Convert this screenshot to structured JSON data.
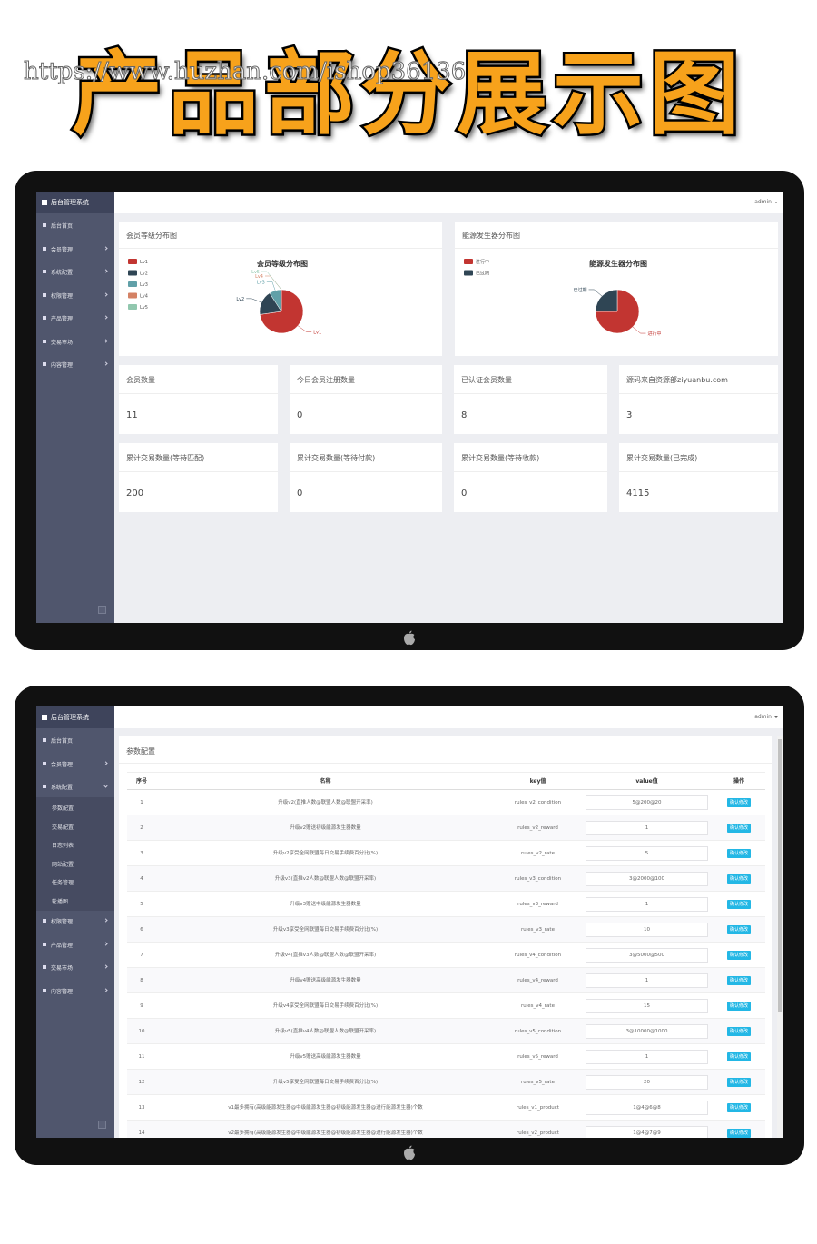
{
  "banner": {
    "title": "产品部分展示图",
    "watermark": "https://www.huzhan.com/ishop36136"
  },
  "screens": [
    {
      "brand": "后台管理系统",
      "user": "admin",
      "menu": [
        {
          "label": "后台首页"
        },
        {
          "label": "会员管理"
        },
        {
          "label": "系统配置"
        },
        {
          "label": "权限管理"
        },
        {
          "label": "产品管理"
        },
        {
          "label": "交易市场"
        },
        {
          "label": "内容管理"
        }
      ],
      "charts": [
        {
          "panel_title": "会员等级分布图",
          "type": "pie",
          "title": "会员等级分布图",
          "categories": [
            "Lv1",
            "Lv2",
            "Lv3",
            "Lv4",
            "Lv5"
          ],
          "values": [
            8,
            2,
            1,
            0,
            0
          ],
          "colors": [
            "#c23531",
            "#2f4554",
            "#61a0a8",
            "#d48265",
            "#91c7ae"
          ]
        },
        {
          "panel_title": "能源发生器分布图",
          "type": "pie",
          "title": "能源发生器分布图",
          "categories": [
            "进行中",
            "已过期"
          ],
          "values": [
            6,
            2
          ],
          "colors": [
            "#c23531",
            "#2f4554"
          ]
        }
      ],
      "stats": [
        {
          "label": "会员数量",
          "value": 11
        },
        {
          "label": "今日会员注册数量",
          "value": 0
        },
        {
          "label": "已认证会员数量",
          "value": 8
        },
        {
          "label": "源码来自资源部ziyuanbu.com",
          "value": 3
        },
        {
          "label": "累计交易数量(等待匹配)",
          "value": 200
        },
        {
          "label": "累计交易数量(等待付款)",
          "value": 0
        },
        {
          "label": "累计交易数量(等待收款)",
          "value": 0
        },
        {
          "label": "累计交易数量(已完成)",
          "value": 4115
        }
      ]
    },
    {
      "brand": "后台管理系统",
      "user": "admin",
      "menu": [
        {
          "label": "后台首页"
        },
        {
          "label": "会员管理"
        },
        {
          "label": "系统配置",
          "children": [
            "参数配置",
            "交易配置",
            "日志列表",
            "网站配置",
            "任务管理",
            "轮播图"
          ]
        },
        {
          "label": "权限管理"
        },
        {
          "label": "产品管理"
        },
        {
          "label": "交易市场"
        },
        {
          "label": "内容管理"
        }
      ],
      "page_title": "参数配置",
      "table": {
        "columns": [
          "序号",
          "名称",
          "key值",
          "value值",
          "操作"
        ],
        "button": "确认修改",
        "rows": [
          [
            1,
            "升级v2(直推人数@联盟人数@联盟开采率)",
            "rules_v2_condition",
            "5@200@20"
          ],
          [
            2,
            "升级v2赠送初级能源发生器数量",
            "rules_v2_reward",
            "1"
          ],
          [
            3,
            "升级v2享受全网联盟每日交易手续费百分比(%)",
            "rules_v2_rate",
            "5"
          ],
          [
            4,
            "升级v3(直推v2人数@联盟人数@联盟开采率)",
            "rules_v3_condition",
            "3@2000@100"
          ],
          [
            5,
            "升级v3赠送中级能源发生器数量",
            "rules_v3_reward",
            "1"
          ],
          [
            6,
            "升级v3享受全网联盟每日交易手续费百分比(%)",
            "rules_v3_rate",
            "10"
          ],
          [
            7,
            "升级v4(直推v3人数@联盟人数@联盟开采率)",
            "rules_v4_condition",
            "3@5000@500"
          ],
          [
            8,
            "升级v4赠送高级能源发生器数量",
            "rules_v4_reward",
            "1"
          ],
          [
            9,
            "升级v4享受全网联盟每日交易手续费百分比(%)",
            "rules_v4_rate",
            "15"
          ],
          [
            10,
            "升级v5(直推v4人数@联盟人数@联盟开采率)",
            "rules_v5_condition",
            "3@10000@1000"
          ],
          [
            11,
            "升级v5赠送高级能源发生器数量",
            "rules_v5_reward",
            "1"
          ],
          [
            12,
            "升级v5享受全网联盟每日交易手续费百分比(%)",
            "rules_v5_rate",
            "20"
          ],
          [
            13,
            "v1最多拥有(高级能源发生器@中级能源发生器@初级能源发生器@进行能源发生器)个数",
            "rules_v1_product",
            "1@4@6@8"
          ],
          [
            14,
            "v2最多拥有(高级能源发生器@中级能源发生器@初级能源发生器@进行能源发生器)个数",
            "rules_v2_product",
            "1@4@7@9"
          ]
        ]
      }
    }
  ]
}
